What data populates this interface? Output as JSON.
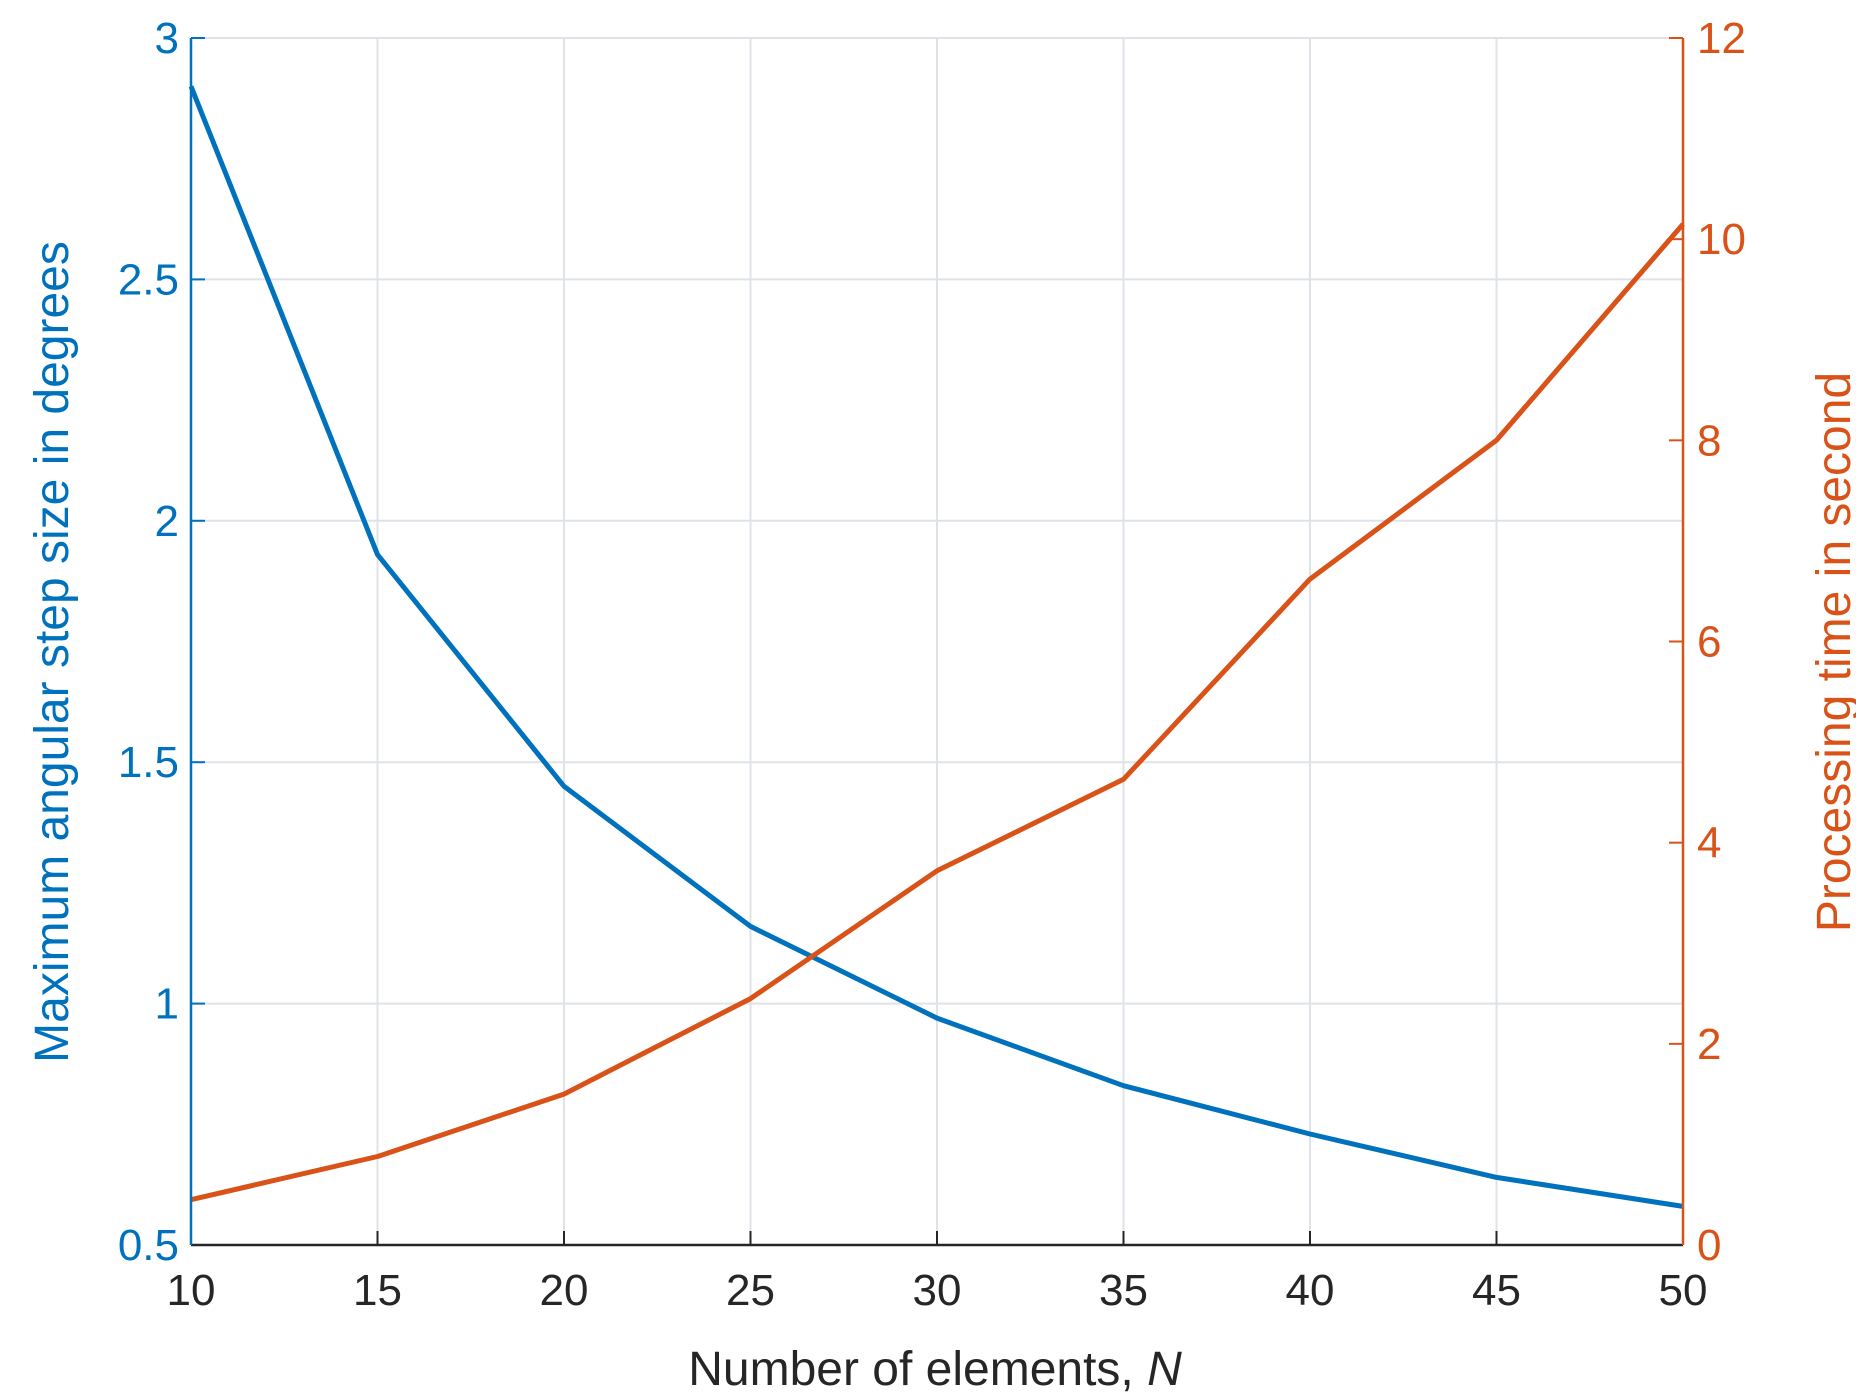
{
  "chart_data": {
    "type": "line",
    "title": "",
    "xlabel": "Number of elements, ",
    "xlabel_italic": "N",
    "ylabel_left": "Maximum angular step size in degrees",
    "ylabel_right": "Processing time in second",
    "x": [
      10,
      15,
      20,
      25,
      30,
      35,
      40,
      45,
      50
    ],
    "xlim": [
      10,
      50
    ],
    "xticks": [
      "10",
      "15",
      "20",
      "25",
      "30",
      "35",
      "40",
      "45",
      "50"
    ],
    "ylim_left": [
      0.5,
      3
    ],
    "yticks_left": [
      "0.5",
      "1",
      "1.5",
      "2",
      "2.5",
      "3"
    ],
    "ylim_right": [
      0,
      12
    ],
    "yticks_right": [
      "0",
      "2",
      "4",
      "6",
      "8",
      "10",
      "12"
    ],
    "grid": true,
    "series": [
      {
        "axis": "left",
        "color": "#0072BD",
        "values": [
          2.9,
          1.93,
          1.45,
          1.16,
          0.97,
          0.83,
          0.73,
          0.64,
          0.58
        ]
      },
      {
        "axis": "right",
        "color": "#D95319",
        "values": [
          0.45,
          0.88,
          1.5,
          2.45,
          3.72,
          4.63,
          6.62,
          8.0,
          10.15
        ]
      }
    ]
  }
}
